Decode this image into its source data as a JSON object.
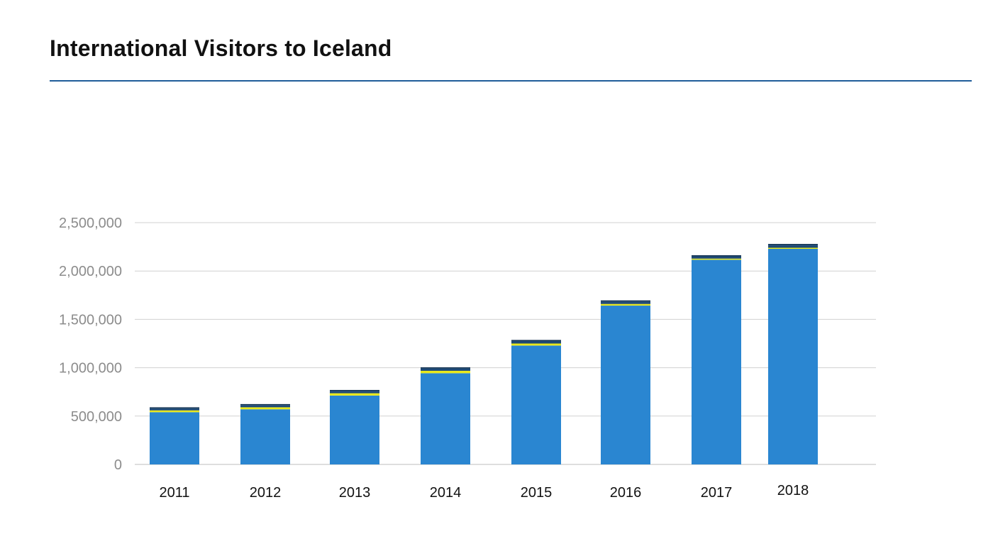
{
  "header": {
    "title": "International Visitors to Iceland"
  },
  "colors": {
    "rule": "#1f5d99",
    "grid": "#d0d0d0",
    "axis": "#bdbdbd"
  },
  "chart_data": {
    "type": "bar",
    "stacked": true,
    "title": "International Visitors to Iceland",
    "xlabel": "",
    "ylabel": "",
    "ylim": [
      0,
      2500000
    ],
    "yticks": [
      0,
      500000,
      1000000,
      1500000,
      2000000,
      2500000
    ],
    "grid": true,
    "legend": "none",
    "categories": [
      "2011",
      "2012",
      "2013",
      "2014",
      "2015",
      "2016",
      "2017",
      "2018"
    ],
    "series": [
      {
        "color": "#2a86d1",
        "values": [
          540000,
          570000,
          712000,
          943000,
          1229000,
          1642000,
          2116000,
          2229000
        ]
      },
      {
        "color": "#e8e81c",
        "values": [
          19000,
          21000,
          24000,
          25000,
          21000,
          17000,
          12000,
          11000
        ]
      },
      {
        "color": "#1f4a75",
        "values": [
          22000,
          23000,
          24000,
          26000,
          26000,
          26000,
          24000,
          30000
        ]
      },
      {
        "color": "#0f2f4f",
        "values": [
          10000,
          10000,
          10000,
          10000,
          11000,
          11000,
          11000,
          10000
        ]
      }
    ]
  }
}
